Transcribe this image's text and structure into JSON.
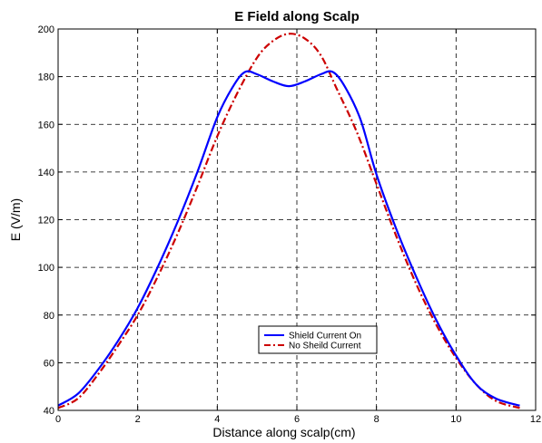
{
  "chart_data": {
    "type": "line",
    "title": "E Field along Scalp",
    "xlabel": "Distance along scalp(cm)",
    "ylabel": "E (V/m)",
    "xlim": [
      0,
      12
    ],
    "ylim": [
      40,
      200
    ],
    "xticks": [
      0,
      2,
      4,
      6,
      8,
      10,
      12
    ],
    "yticks": [
      40,
      60,
      80,
      100,
      120,
      140,
      160,
      180,
      200
    ],
    "grid": true,
    "legend_position": "lower-center",
    "series": [
      {
        "name": "Shield Current On",
        "color": "#0000ff",
        "style": "solid",
        "x": [
          0,
          0.5,
          1.0,
          1.5,
          2.0,
          2.5,
          3.0,
          3.5,
          4.0,
          4.4,
          4.7,
          5.0,
          5.4,
          5.8,
          6.2,
          6.6,
          6.9,
          7.2,
          7.6,
          8.0,
          8.5,
          9.0,
          9.5,
          10.0,
          10.5,
          11.0,
          11.6
        ],
        "y": [
          42,
          47,
          57,
          69,
          83,
          100,
          119,
          140,
          163,
          176,
          182,
          181,
          178,
          176,
          178,
          181,
          182,
          176,
          162,
          139,
          116,
          96,
          78,
          63,
          51,
          45,
          42
        ]
      },
      {
        "name": "No Sheild Current",
        "color": "#cc0000",
        "style": "dashdot",
        "x": [
          0,
          0.5,
          1.0,
          1.5,
          2.0,
          2.5,
          3.0,
          3.5,
          4.0,
          4.5,
          5.0,
          5.4,
          5.8,
          6.2,
          6.6,
          7.0,
          7.5,
          8.0,
          8.5,
          9.0,
          9.5,
          10.0,
          10.5,
          11.0,
          11.6
        ],
        "y": [
          41,
          45,
          55,
          67,
          80,
          96,
          114,
          134,
          155,
          173,
          188,
          195,
          198,
          196,
          189,
          175,
          157,
          135,
          113,
          93,
          76,
          62,
          51,
          44,
          41
        ]
      }
    ]
  }
}
